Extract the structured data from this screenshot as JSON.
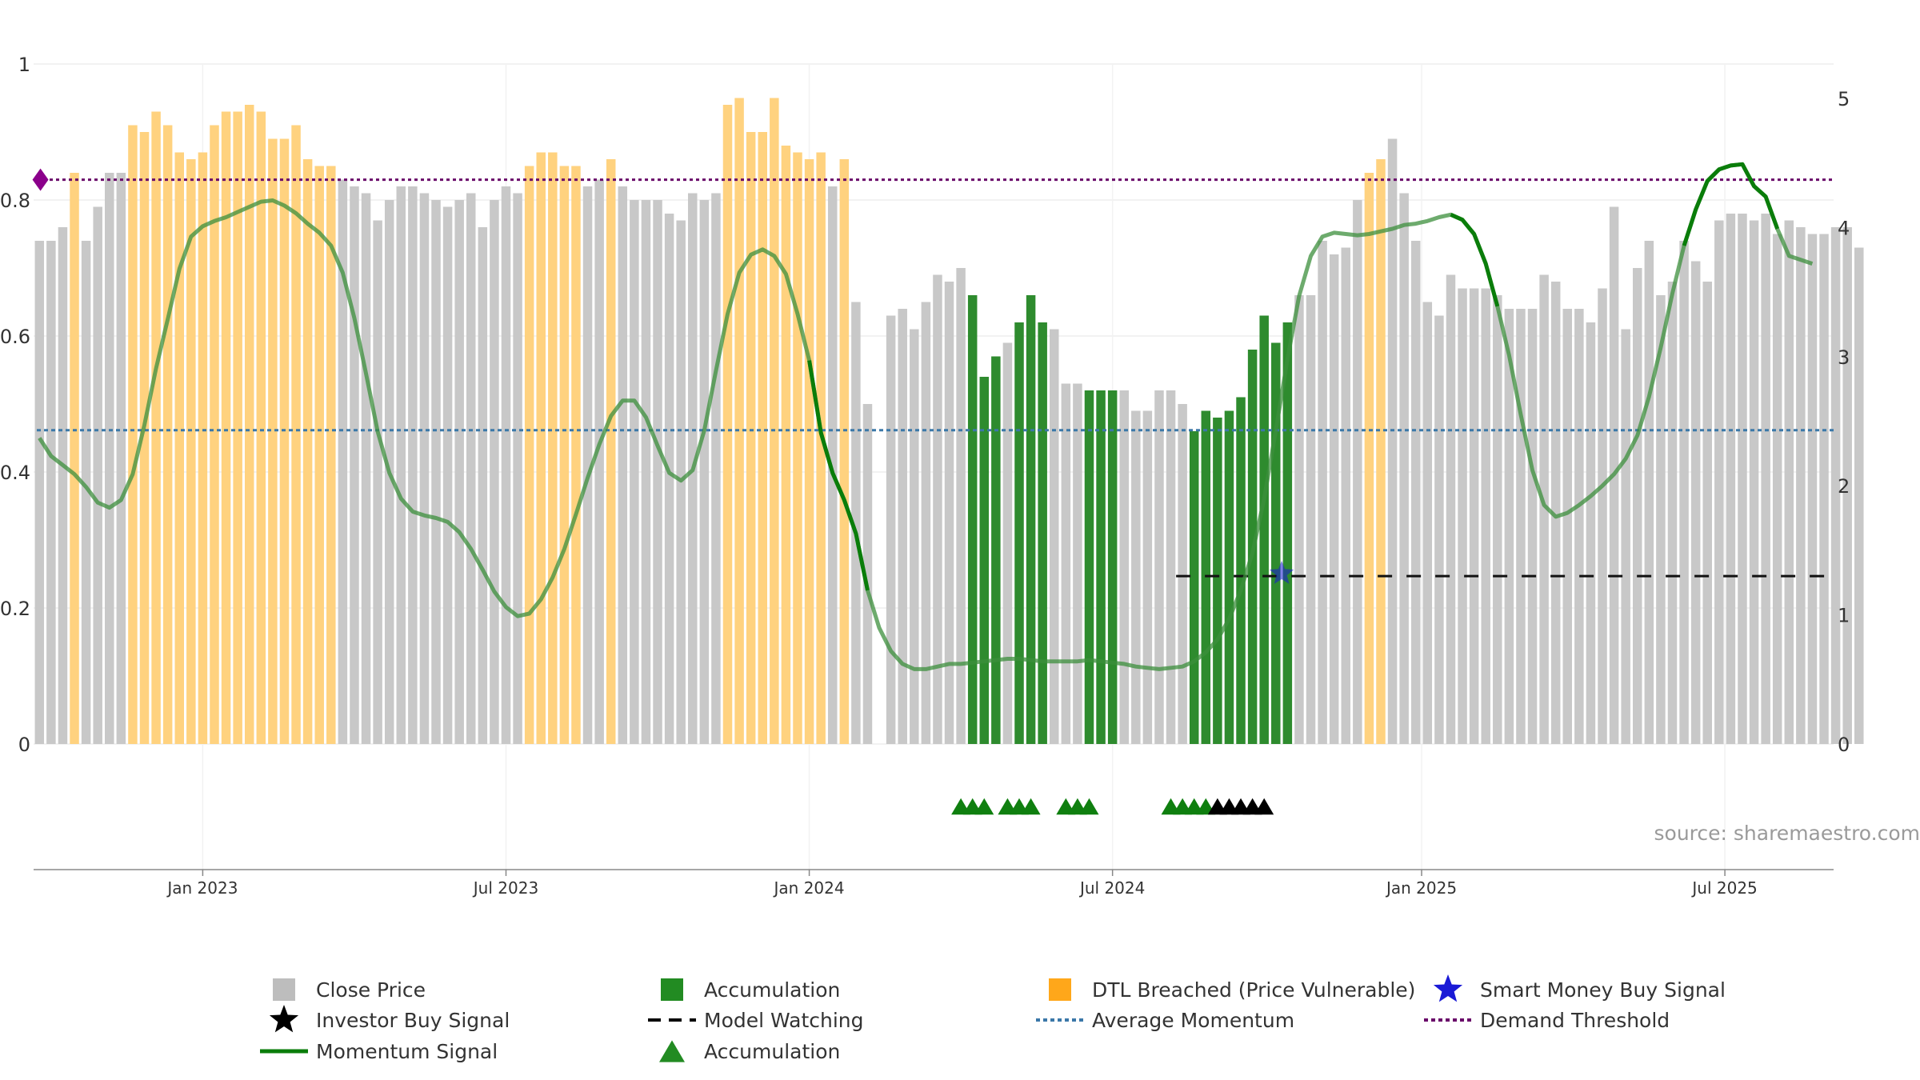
{
  "chart_data": {
    "type": "bar",
    "title": "",
    "xlabel": "",
    "ylabel": "",
    "left_axis": {
      "ylim": [
        0,
        1
      ],
      "ticks": [
        "0",
        "0.2",
        "0.4",
        "0.6",
        "0.8",
        "1"
      ]
    },
    "right_axis": {
      "ylim": [
        0,
        5
      ],
      "ticks": [
        "0",
        "1",
        "2",
        "3",
        "4",
        "5"
      ]
    },
    "x_ticks": [
      {
        "label": "Jan 2023",
        "week": 14
      },
      {
        "label": "Jul 2023",
        "week": 40
      },
      {
        "label": "Jan 2024",
        "week": 66
      },
      {
        "label": "Jul 2024",
        "week": 92
      },
      {
        "label": "Jan 2025",
        "week": 118.5
      },
      {
        "label": "Jul 2025",
        "week": 144.5
      }
    ],
    "grid": true,
    "colors": {
      "close": "#c8c8c8",
      "accumulation": "#2e8b2e",
      "dtl": "#ffd27f",
      "momentum": "#0a7d0a",
      "average": "#3b78a8",
      "threshold": "#6a0a6a",
      "investor": "#000000",
      "smart_money": "#1a1ad6"
    },
    "close_price": [
      0.74,
      0.74,
      0.76,
      0.84,
      0.74,
      0.79,
      0.84,
      0.84,
      0.91,
      0.9,
      0.93,
      0.91,
      0.87,
      0.86,
      0.87,
      0.91,
      0.93,
      0.93,
      0.94,
      0.93,
      0.89,
      0.89,
      0.91,
      0.86,
      0.85,
      0.85,
      0.83,
      0.82,
      0.81,
      0.77,
      0.8,
      0.82,
      0.82,
      0.81,
      0.8,
      0.79,
      0.8,
      0.81,
      0.76,
      0.8,
      0.82,
      0.81,
      0.85,
      0.87,
      0.87,
      0.85,
      0.85,
      0.82,
      0.83,
      0.86,
      0.82,
      0.8,
      0.8,
      0.8,
      0.78,
      0.77,
      0.81,
      0.8,
      0.81,
      0.94,
      0.95,
      0.9,
      0.9,
      0.95,
      0.88,
      0.87,
      0.86,
      0.87,
      0.82,
      0.86,
      0.65,
      0.5,
      0.0,
      0.63,
      0.64,
      0.61,
      0.65,
      0.69,
      0.68,
      0.7,
      0.66,
      0.54,
      0.57,
      0.59,
      0.62,
      0.66,
      0.62,
      0.61,
      0.53,
      0.53,
      0.52,
      0.52,
      0.52,
      0.52,
      0.49,
      0.49,
      0.52,
      0.52,
      0.5,
      0.46,
      0.49,
      0.48,
      0.49,
      0.51,
      0.58,
      0.63,
      0.59,
      0.62,
      0.66,
      0.66,
      0.74,
      0.72,
      0.73,
      0.8,
      0.84,
      0.86,
      0.89,
      0.81,
      0.74,
      0.65,
      0.63,
      0.69,
      0.67,
      0.67,
      0.67,
      0.66,
      0.64,
      0.64,
      0.64,
      0.69,
      0.68,
      0.64,
      0.64,
      0.62,
      0.67,
      0.79,
      0.61,
      0.7,
      0.74,
      0.66,
      0.68,
      0.74,
      0.71,
      0.68,
      0.77,
      0.78,
      0.78,
      0.77,
      0.78,
      0.75,
      0.77,
      0.76,
      0.75,
      0.75,
      0.76,
      0.76,
      0.73
    ],
    "categories": [
      "grey",
      "grey",
      "grey",
      "dtl",
      "grey",
      "grey",
      "grey",
      "grey",
      "dtl",
      "dtl",
      "dtl",
      "dtl",
      "dtl",
      "dtl",
      "dtl",
      "dtl",
      "dtl",
      "dtl",
      "dtl",
      "dtl",
      "dtl",
      "dtl",
      "dtl",
      "dtl",
      "dtl",
      "dtl",
      "grey",
      "grey",
      "grey",
      "grey",
      "grey",
      "grey",
      "grey",
      "grey",
      "grey",
      "grey",
      "grey",
      "grey",
      "grey",
      "grey",
      "grey",
      "grey",
      "dtl",
      "dtl",
      "dtl",
      "dtl",
      "dtl",
      "grey",
      "grey",
      "dtl",
      "grey",
      "grey",
      "grey",
      "grey",
      "grey",
      "grey",
      "grey",
      "grey",
      "grey",
      "dtl",
      "dtl",
      "dtl",
      "dtl",
      "dtl",
      "dtl",
      "dtl",
      "dtl",
      "dtl",
      "grey",
      "dtl",
      "grey",
      "grey",
      "grey",
      "grey",
      "grey",
      "grey",
      "grey",
      "grey",
      "grey",
      "grey",
      "acc",
      "acc",
      "acc",
      "grey",
      "acc",
      "acc",
      "acc",
      "grey",
      "grey",
      "grey",
      "acc",
      "acc",
      "acc",
      "grey",
      "grey",
      "grey",
      "grey",
      "grey",
      "grey",
      "acc",
      "acc",
      "acc",
      "acc",
      "acc",
      "acc",
      "acc",
      "acc",
      "acc",
      "grey",
      "grey",
      "grey",
      "grey",
      "grey",
      "grey",
      "dtl",
      "dtl",
      "grey",
      "grey",
      "grey",
      "grey",
      "grey",
      "grey",
      "grey",
      "grey",
      "grey",
      "grey",
      "grey",
      "grey",
      "grey",
      "grey",
      "grey",
      "grey",
      "grey",
      "grey",
      "grey",
      "grey",
      "grey",
      "grey",
      "grey",
      "grey",
      "grey",
      "grey",
      "grey",
      "grey",
      "grey",
      "grey",
      "grey",
      "grey",
      "grey",
      "grey",
      "grey",
      "grey",
      "grey",
      "grey",
      "grey",
      "grey",
      "grey",
      "grey"
    ],
    "momentum": [
      [
        0,
        2.37
      ],
      [
        1,
        2.23
      ],
      [
        2,
        2.16
      ],
      [
        3,
        2.09
      ],
      [
        4,
        1.99
      ],
      [
        5,
        1.87
      ],
      [
        6,
        1.83
      ],
      [
        7,
        1.89
      ],
      [
        8,
        2.09
      ],
      [
        9,
        2.47
      ],
      [
        10,
        2.91
      ],
      [
        11,
        3.29
      ],
      [
        12,
        3.68
      ],
      [
        13,
        3.93
      ],
      [
        14,
        4.01
      ],
      [
        15,
        4.05
      ],
      [
        16,
        4.08
      ],
      [
        17,
        4.12
      ],
      [
        18,
        4.16
      ],
      [
        19,
        4.2
      ],
      [
        20,
        4.21
      ],
      [
        21,
        4.17
      ],
      [
        22,
        4.11
      ],
      [
        23,
        4.03
      ],
      [
        24,
        3.96
      ],
      [
        25,
        3.86
      ],
      [
        26,
        3.65
      ],
      [
        27,
        3.3
      ],
      [
        28,
        2.87
      ],
      [
        29,
        2.42
      ],
      [
        30,
        2.1
      ],
      [
        31,
        1.9
      ],
      [
        32,
        1.8
      ],
      [
        33,
        1.77
      ],
      [
        34,
        1.75
      ],
      [
        35,
        1.72
      ],
      [
        36,
        1.64
      ],
      [
        37,
        1.51
      ],
      [
        38,
        1.35
      ],
      [
        39,
        1.18
      ],
      [
        40,
        1.06
      ],
      [
        41,
        0.99
      ],
      [
        42,
        1.01
      ],
      [
        43,
        1.12
      ],
      [
        44,
        1.29
      ],
      [
        45,
        1.51
      ],
      [
        46,
        1.78
      ],
      [
        47,
        2.06
      ],
      [
        48,
        2.32
      ],
      [
        49,
        2.54
      ],
      [
        50,
        2.66
      ],
      [
        51,
        2.66
      ],
      [
        52,
        2.53
      ],
      [
        53,
        2.31
      ],
      [
        54,
        2.1
      ],
      [
        55,
        2.04
      ],
      [
        56,
        2.12
      ],
      [
        57,
        2.43
      ],
      [
        58,
        2.89
      ],
      [
        59,
        3.33
      ],
      [
        60,
        3.65
      ],
      [
        61,
        3.79
      ],
      [
        62,
        3.83
      ],
      [
        63,
        3.78
      ],
      [
        64,
        3.64
      ],
      [
        65,
        3.33
      ],
      [
        66,
        2.97
      ],
      [
        67,
        2.41
      ],
      [
        68,
        2.1
      ],
      [
        69,
        1.89
      ],
      [
        70,
        1.63
      ],
      [
        71,
        1.19
      ],
      [
        72,
        0.9
      ],
      [
        73,
        0.72
      ],
      [
        74,
        0.62
      ],
      [
        75,
        0.58
      ],
      [
        76,
        0.58
      ],
      [
        77,
        0.6
      ],
      [
        78,
        0.62
      ],
      [
        79,
        0.62
      ],
      [
        80,
        0.63
      ],
      [
        81,
        0.64
      ],
      [
        82,
        0.65
      ],
      [
        83,
        0.66
      ],
      [
        84,
        0.66
      ],
      [
        85,
        0.65
      ],
      [
        86,
        0.64
      ],
      [
        87,
        0.64
      ],
      [
        88,
        0.64
      ],
      [
        89,
        0.64
      ],
      [
        90,
        0.65
      ],
      [
        91,
        0.64
      ],
      [
        92,
        0.63
      ],
      [
        93,
        0.62
      ],
      [
        94,
        0.6
      ],
      [
        95,
        0.59
      ],
      [
        96,
        0.58
      ],
      [
        97,
        0.59
      ],
      [
        98,
        0.6
      ],
      [
        99,
        0.64
      ],
      [
        100,
        0.71
      ],
      [
        101,
        0.81
      ],
      [
        102,
        0.97
      ],
      [
        103,
        1.19
      ],
      [
        104,
        1.48
      ],
      [
        105,
        1.9
      ],
      [
        106,
        2.43
      ],
      [
        107,
        2.98
      ],
      [
        108,
        3.47
      ],
      [
        109,
        3.78
      ],
      [
        110,
        3.93
      ],
      [
        111,
        3.96
      ],
      [
        112,
        3.95
      ],
      [
        113,
        3.94
      ],
      [
        114,
        3.95
      ],
      [
        115,
        3.97
      ],
      [
        116,
        3.99
      ],
      [
        117,
        4.02
      ],
      [
        118,
        4.03
      ],
      [
        119,
        4.05
      ],
      [
        120,
        4.08
      ],
      [
        121,
        4.1
      ],
      [
        122,
        4.06
      ],
      [
        123,
        3.95
      ],
      [
        124,
        3.72
      ],
      [
        125,
        3.39
      ],
      [
        126,
        3.01
      ],
      [
        127,
        2.55
      ],
      [
        128,
        2.12
      ],
      [
        129,
        1.85
      ],
      [
        130,
        1.76
      ],
      [
        131,
        1.79
      ],
      [
        132,
        1.85
      ],
      [
        133,
        1.92
      ],
      [
        134,
        2.0
      ],
      [
        135,
        2.09
      ],
      [
        136,
        2.21
      ],
      [
        137,
        2.39
      ],
      [
        138,
        2.69
      ],
      [
        139,
        3.07
      ],
      [
        140,
        3.49
      ],
      [
        141,
        3.86
      ],
      [
        142,
        4.14
      ],
      [
        143,
        4.36
      ],
      [
        144,
        4.45
      ],
      [
        145,
        4.48
      ],
      [
        146,
        4.49
      ],
      [
        147,
        4.32
      ],
      [
        148,
        4.24
      ],
      [
        149,
        3.99
      ],
      [
        150,
        3.78
      ],
      [
        151,
        3.75
      ],
      [
        152,
        3.72
      ]
    ],
    "momentum_highlight_ranges": [
      [
        66,
        71
      ],
      [
        121,
        125
      ],
      [
        141,
        149
      ]
    ],
    "average_momentum": 2.43,
    "demand_threshold": 4.37,
    "model_watching": {
      "from_week": 98,
      "to_week": 155,
      "level": 1.3
    },
    "smart_money_signal": {
      "week": 106.5,
      "level": 1.32
    },
    "threshold_marker_week": 0.5,
    "accumulation_markers": [
      79,
      80,
      81,
      83,
      84,
      85,
      88,
      89,
      90,
      97,
      98,
      99,
      100
    ],
    "investor_buy_markers": [
      101,
      102,
      103,
      104,
      105
    ],
    "source": "source: sharemaestro.com",
    "legend": [
      {
        "label": "Close Price",
        "symbol": "square",
        "color": "#bdbdbd"
      },
      {
        "label": "Accumulation",
        "symbol": "square",
        "color": "#228b22"
      },
      {
        "label": "DTL Breached (Price Vulnerable)",
        "symbol": "square",
        "color": "#ffa71a"
      },
      {
        "label": "Smart Money Buy Signal",
        "symbol": "star",
        "color": "#1a1ad6"
      },
      {
        "label": "Investor Buy Signal",
        "symbol": "star",
        "color": "#000000"
      },
      {
        "label": "Model Watching",
        "symbol": "dash",
        "color": "#000000"
      },
      {
        "label": "Average Momentum",
        "symbol": "dot",
        "color": "#3b78a8"
      },
      {
        "label": "Demand Threshold",
        "symbol": "dot",
        "color": "#6a0a6a"
      },
      {
        "label": "Momentum Signal",
        "symbol": "line",
        "color": "#0a7d0a"
      },
      {
        "label": "Accumulation",
        "symbol": "triangle",
        "color": "#228b22"
      }
    ]
  }
}
